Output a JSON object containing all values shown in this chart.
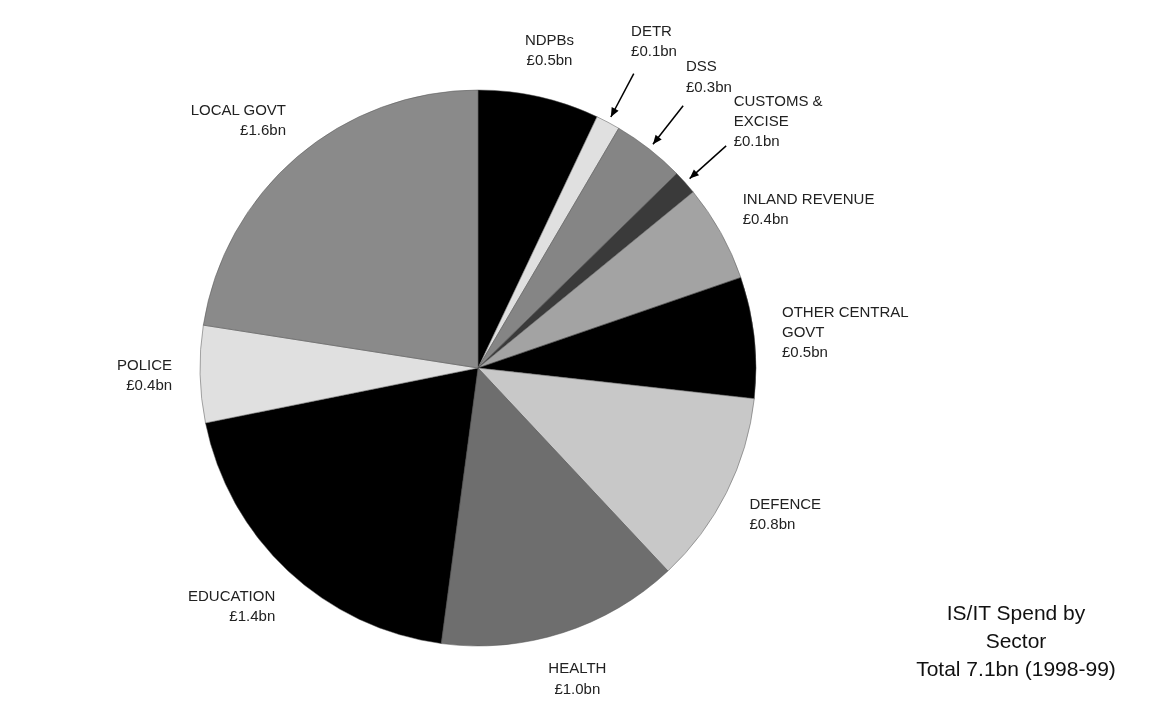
{
  "chart_data": {
    "type": "pie",
    "title": "IS/IT Spend by Sector",
    "subtitle": "Total 7.1bn (1998-99)",
    "categories": [
      "NDPBs",
      "DETR",
      "DSS",
      "CUSTOMS & EXCISE",
      "INLAND REVENUE",
      "OTHER CENTRAL GOVT",
      "DEFENCE",
      "HEALTH",
      "EDUCATION",
      "POLICE",
      "LOCAL GOVT"
    ],
    "values": [
      0.5,
      0.1,
      0.3,
      0.1,
      0.4,
      0.5,
      0.8,
      1.0,
      1.4,
      0.4,
      1.6
    ],
    "value_labels": [
      "£0.5bn",
      "£0.1bn",
      "£0.3bn",
      "£0.1bn",
      "£0.4bn",
      "£0.5bn",
      "£0.8bn",
      "£1.0bn",
      "£1.4bn",
      "£0.4bn",
      "£1.6bn"
    ],
    "colors": [
      "#000000",
      "#e0e0e0",
      "#858585",
      "#3a3a3a",
      "#a3a3a3",
      "#000000",
      "#c8c8c8",
      "#6e6e6e",
      "#000000",
      "#e0e0e0",
      "#8a8a8a"
    ]
  }
}
